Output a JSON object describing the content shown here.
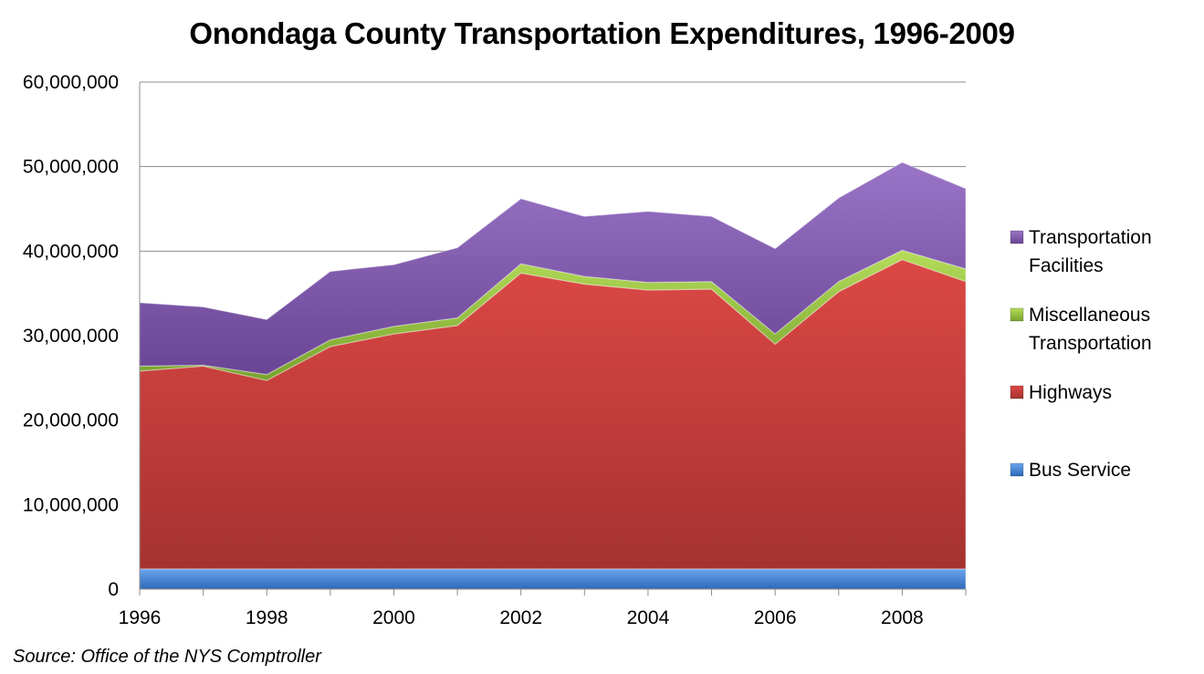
{
  "chart_data": {
    "type": "area",
    "stacked": true,
    "title": "Onondaga County Transportation Expenditures, 1996-2009",
    "source": "Source:  Office of the NYS Comptroller",
    "xlabel": "",
    "ylabel": "",
    "x": [
      1996,
      1997,
      1998,
      1999,
      2000,
      2001,
      2002,
      2003,
      2004,
      2005,
      2006,
      2007,
      2008,
      2009
    ],
    "x_tick_labels": [
      "1996",
      "1998",
      "2000",
      "2002",
      "2004",
      "2006",
      "2008"
    ],
    "ylim": [
      0,
      60000000
    ],
    "y_tick_labels": [
      "0",
      "10,000,000",
      "20,000,000",
      "30,000,000",
      "40,000,000",
      "50,000,000",
      "60,000,000"
    ],
    "grid": true,
    "legend_position": "right",
    "series": [
      {
        "name": "Bus Service",
        "color": "#3f7fd0",
        "values": [
          2400000,
          2400000,
          2400000,
          2400000,
          2400000,
          2400000,
          2400000,
          2400000,
          2400000,
          2400000,
          2400000,
          2400000,
          2400000,
          2400000
        ]
      },
      {
        "name": "Highways",
        "color": "#c83a36",
        "values": [
          23400000,
          24000000,
          22300000,
          26300000,
          27800000,
          28800000,
          35000000,
          33700000,
          33000000,
          33100000,
          26600000,
          32800000,
          36600000,
          34000000
        ]
      },
      {
        "name": "Miscellaneous Transportation",
        "color": "#8fbc3c",
        "values": [
          600000,
          100000,
          700000,
          800000,
          900000,
          900000,
          1100000,
          900000,
          900000,
          900000,
          1200000,
          1200000,
          1100000,
          1500000
        ]
      },
      {
        "name": "Transportation Facilities",
        "color": "#7c55a8",
        "values": [
          7500000,
          6900000,
          6500000,
          8100000,
          7300000,
          8300000,
          7700000,
          7100000,
          8400000,
          7700000,
          10100000,
          9900000,
          10400000,
          9500000
        ]
      }
    ],
    "legend": [
      {
        "lines": [
          "Transportation",
          "Facilities"
        ],
        "series": "Transportation Facilities"
      },
      {
        "lines": [
          "Miscellaneous",
          "Transportation"
        ],
        "series": "Miscellaneous Transportation"
      },
      {
        "lines": [
          "Highways"
        ],
        "series": "Highways"
      },
      {
        "lines": [
          "Bus Service"
        ],
        "series": "Bus Service"
      }
    ]
  }
}
